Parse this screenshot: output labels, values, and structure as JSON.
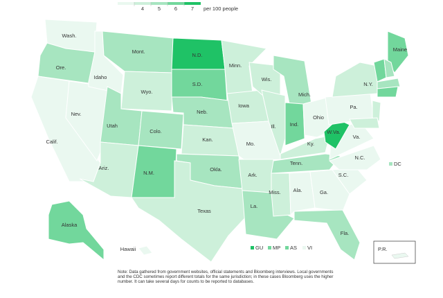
{
  "legend": {
    "ticks": [
      4,
      5,
      6,
      7
    ],
    "unit": "per 100 people",
    "colors": [
      "#eaf8f0",
      "#cdf0da",
      "#a7e5c0",
      "#72d79c",
      "#1fc266"
    ]
  },
  "states": [
    {
      "label": "Wash.",
      "value": 3.5
    },
    {
      "label": "Ore.",
      "value": 5.5
    },
    {
      "label": "Calif.",
      "value": 3.5
    },
    {
      "label": "Nev.",
      "value": 3.5
    },
    {
      "label": "Idaho",
      "value": 3.5
    },
    {
      "label": "Mont.",
      "value": 5.5
    },
    {
      "label": "Wyo.",
      "value": 4.5
    },
    {
      "label": "Utah",
      "value": 5.5
    },
    {
      "label": "Ariz.",
      "value": 4.5
    },
    {
      "label": "Colo.",
      "value": 5.5
    },
    {
      "label": "N.M.",
      "value": 6.5
    },
    {
      "label": "N.D.",
      "value": 7.5
    },
    {
      "label": "S.D.",
      "value": 6.5
    },
    {
      "label": "Neb.",
      "value": 5.5
    },
    {
      "label": "Kan.",
      "value": 4.5
    },
    {
      "label": "Okla.",
      "value": 5.5
    },
    {
      "label": "Texas",
      "value": 4.5
    },
    {
      "label": "Minn.",
      "value": 4.5
    },
    {
      "label": "Iowa",
      "value": 4.5
    },
    {
      "label": "Mo.",
      "value": 3.5
    },
    {
      "label": "Ark.",
      "value": 4.5
    },
    {
      "label": "La.",
      "value": 5.5
    },
    {
      "label": "Wis.",
      "value": 4.5
    },
    {
      "label": "Ill.",
      "value": 4.5
    },
    {
      "label": "Mich.",
      "value": 5.5
    },
    {
      "label": "Ind.",
      "value": 6.5
    },
    {
      "label": "Ohio",
      "value": 3.5
    },
    {
      "label": "Ky.",
      "value": 4.5
    },
    {
      "label": "Tenn.",
      "value": 5.5
    },
    {
      "label": "Miss.",
      "value": 4.5
    },
    {
      "label": "Ala.",
      "value": 3.5
    },
    {
      "label": "Ga.",
      "value": 3.5
    },
    {
      "label": "Fla.",
      "value": 5.5
    },
    {
      "label": "S.C.",
      "value": 3.5
    },
    {
      "label": "N.C.",
      "value": 3.5
    },
    {
      "label": "Va.",
      "value": 3.5
    },
    {
      "label": "W.Va.",
      "value": 7.5
    },
    {
      "label": "Pa.",
      "value": 3.5
    },
    {
      "label": "N.Y.",
      "value": 4.5
    },
    {
      "label": "Maine",
      "value": 6.5
    },
    {
      "label": null,
      "value": 6.5
    },
    {
      "label": null,
      "value": 5.5
    },
    {
      "label": null,
      "value": 5.5
    },
    {
      "label": null,
      "value": 6.5
    },
    {
      "label": null,
      "value": 4.5
    },
    {
      "label": null,
      "value": 4.5
    },
    {
      "label": "Alaska",
      "value": 6.5
    },
    {
      "label": "Hawaii",
      "value": 3.5
    }
  ],
  "territories": [
    {
      "label": "GU",
      "value": 7.5
    },
    {
      "label": "MP",
      "value": 6.5
    },
    {
      "label": "AS",
      "value": 6.5
    },
    {
      "label": "VI",
      "value": 3.5
    }
  ],
  "dc": {
    "label": "DC",
    "value": 5.5
  },
  "pr": {
    "label": "P.R.",
    "value": 3.5
  },
  "note": "Note: Data gathered from government websites, official statements and Bloomberg interviews. Local governments and the CDC sometimes report different totals for the same jurisdiction; in these cases Bloomberg uses the higher number. It can take several days for counts to be reported to databases."
}
